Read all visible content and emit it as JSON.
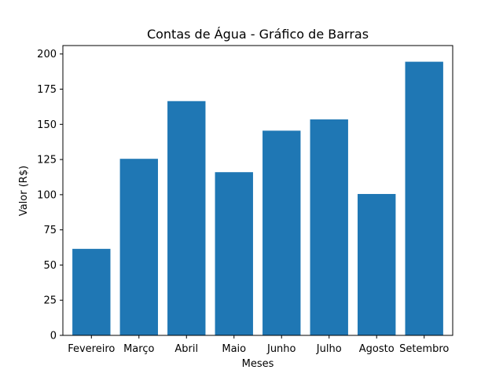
{
  "chart_data": {
    "type": "bar",
    "title": "Contas de Água - Gráfico de Barras",
    "xlabel": "Meses",
    "ylabel": "Valor (R$)",
    "categories": [
      "Fevereiro",
      "Março",
      "Abril",
      "Maio",
      "Junho",
      "Julho",
      "Agosto",
      "Setembro"
    ],
    "values": [
      61.5,
      125.5,
      166.5,
      116.0,
      145.5,
      153.5,
      100.5,
      194.5
    ],
    "ylim": [
      0,
      206
    ],
    "yticks": [
      "0",
      "25",
      "50",
      "75",
      "100",
      "125",
      "150",
      "175",
      "200"
    ],
    "grid": false,
    "bar_color": "#1f77b4"
  }
}
